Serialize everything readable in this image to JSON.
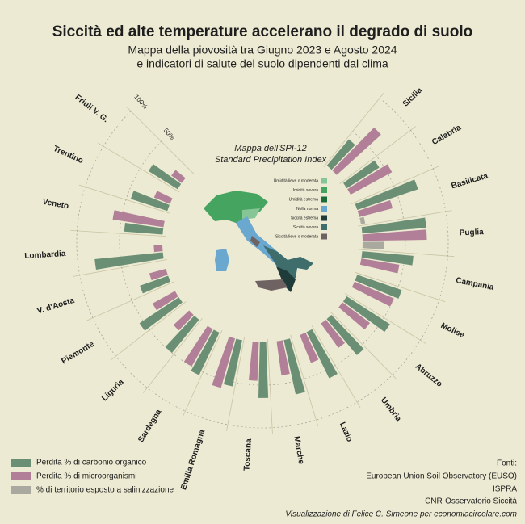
{
  "chart_data": {
    "type": "radial_bar",
    "title": "Siccità ed alte temperature accelerano il degrado di suolo",
    "subtitle": [
      "Mappa della piovosità tra Giugno 2023 e Agosto 2024",
      "e indicatori di salute del suolo dipendenti dal clima"
    ],
    "categories": [
      "Sicilia",
      "Calabria",
      "Basilicata",
      "Puglia",
      "Campania",
      "Molise",
      "Abruzzo",
      "Umbria",
      "Lazio",
      "Marche",
      "Toscana",
      "Emilia Romagna",
      "Sardegna",
      "Liguria",
      "Piemonte",
      "V. d'Aosta",
      "Lombardia",
      "Veneto",
      "Trentino",
      "Friuli V. G."
    ],
    "series": [
      {
        "name": "Perdita % di carbonio organico",
        "color": "#6b8f74",
        "values": [
          40,
          45,
          75,
          75,
          60,
          55,
          60,
          55,
          60,
          65,
          65,
          55,
          55,
          50,
          55,
          35,
          80,
          45,
          45,
          40
        ]
      },
      {
        "name": "Perdita % di microorganismi",
        "color": "#b17f97",
        "values": [
          70,
          55,
          40,
          75,
          45,
          50,
          40,
          35,
          35,
          40,
          45,
          60,
          50,
          25,
          30,
          20,
          10,
          60,
          20,
          15
        ]
      },
      {
        "name": "% di territorio esposto a salinizzazione",
        "color": "#aaa9a0",
        "values": [
          null,
          null,
          5,
          25,
          null,
          null,
          null,
          null,
          null,
          null,
          null,
          null,
          null,
          null,
          null,
          null,
          null,
          null,
          null,
          null
        ]
      }
    ],
    "rlim": [
      0,
      100
    ],
    "rticks": [
      {
        "value": 50,
        "label": "50%"
      },
      {
        "value": 100,
        "label": "100%"
      }
    ],
    "map": {
      "title": "Mappa dell'SPI-12",
      "subtitle": "Standard Precipitation Index",
      "legend": [
        {
          "label": "Umidità lieve o moderata",
          "color": "#86c596"
        },
        {
          "label": "Umidità severa",
          "color": "#45a45f"
        },
        {
          "label": "Umidità estrema",
          "color": "#1d6b38"
        },
        {
          "label": "Nella norma",
          "color": "#6aa8cf"
        },
        {
          "label": "Siccità estrema",
          "color": "#1f3b3a"
        },
        {
          "label": "Siccità severa",
          "color": "#3e6d6b"
        },
        {
          "label": "Siccità lieve o moderata",
          "color": "#6e6262"
        }
      ]
    },
    "sources_title": "Fonti:",
    "sources": [
      "European Union Soil Observatory (EUSO)",
      "ISPRA",
      "CNR-Osservatorio Siccità"
    ],
    "credit": "Visualizzazione di Felice C. Simeone per economiacircolare.com"
  }
}
